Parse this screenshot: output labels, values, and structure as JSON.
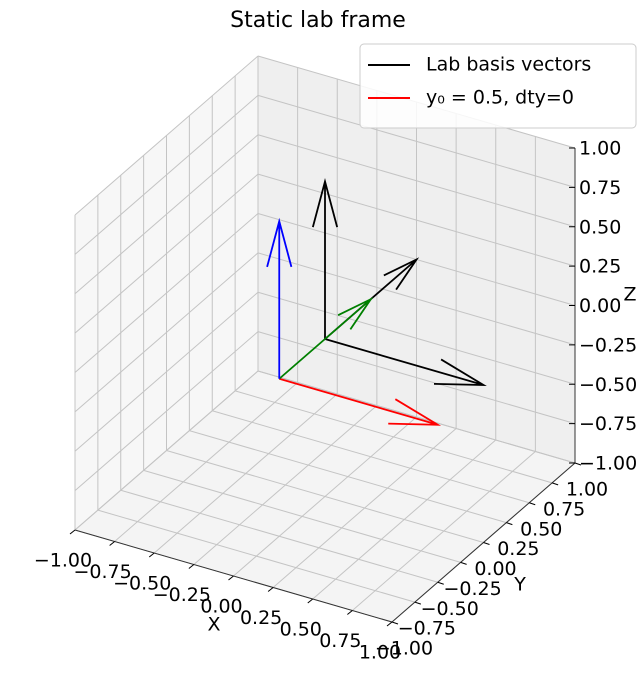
{
  "chart_data": {
    "type": "quiver3d",
    "title": "Static lab frame",
    "xlabel": "X",
    "ylabel": "Y",
    "zlabel": "Z",
    "xlim": [
      -1,
      1
    ],
    "ylim": [
      -1,
      1
    ],
    "zlim": [
      -1,
      1
    ],
    "xticks": [
      {
        "value": -1,
        "label": "−1.00"
      },
      {
        "value": -0.75,
        "label": "−0.75"
      },
      {
        "value": -0.5,
        "label": "−0.50"
      },
      {
        "value": -0.25,
        "label": "−0.25"
      },
      {
        "value": 0,
        "label": "0.00"
      },
      {
        "value": 0.25,
        "label": "0.25"
      },
      {
        "value": 0.5,
        "label": "0.50"
      },
      {
        "value": 0.75,
        "label": "0.75"
      },
      {
        "value": 1,
        "label": "1.00"
      }
    ],
    "yticks": [
      {
        "value": -1,
        "label": "−1.00"
      },
      {
        "value": -0.75,
        "label": "−0.75"
      },
      {
        "value": -0.5,
        "label": "−0.50"
      },
      {
        "value": -0.25,
        "label": "−0.25"
      },
      {
        "value": 0,
        "label": "0.00"
      },
      {
        "value": 0.25,
        "label": "0.25"
      },
      {
        "value": 0.5,
        "label": "0.50"
      },
      {
        "value": 0.75,
        "label": "0.75"
      },
      {
        "value": 1,
        "label": "1.00"
      }
    ],
    "zticks": [
      {
        "value": -1,
        "label": "−1.00"
      },
      {
        "value": -0.75,
        "label": "−0.75"
      },
      {
        "value": -0.5,
        "label": "−0.50"
      },
      {
        "value": -0.25,
        "label": "−0.25"
      },
      {
        "value": 0,
        "label": "0.00"
      },
      {
        "value": 0.25,
        "label": "0.25"
      },
      {
        "value": 0.5,
        "label": "0.50"
      },
      {
        "value": 0.75,
        "label": "0.75"
      },
      {
        "value": 1,
        "label": "1.00"
      }
    ],
    "grid": true,
    "legend": "upper right",
    "series": [
      {
        "name": "Lab basis vectors",
        "color": "#000000",
        "x": [
          0,
          0,
          0
        ],
        "y": [
          0,
          0,
          0
        ],
        "z": [
          0,
          0,
          0
        ],
        "u": [
          1,
          0,
          0
        ],
        "v": [
          0,
          1,
          0
        ],
        "w": [
          0,
          0,
          1
        ]
      },
      {
        "name": "y₀ = 0.5, dty=0",
        "color": "#ff0000",
        "x": [
          0
        ],
        "y": [
          -0.5
        ],
        "z": [
          0
        ],
        "u": [
          1
        ],
        "v": [
          0
        ],
        "w": [
          0
        ]
      },
      {
        "color": "#008000",
        "x": [
          0
        ],
        "y": [
          -0.5
        ],
        "z": [
          0
        ],
        "u": [
          0
        ],
        "v": [
          1
        ],
        "w": [
          0
        ]
      },
      {
        "color": "#0000ff",
        "x": [
          0
        ],
        "y": [
          -0.5
        ],
        "z": [
          0
        ],
        "u": [
          0
        ],
        "v": [
          0
        ],
        "w": [
          1
        ]
      }
    ]
  }
}
